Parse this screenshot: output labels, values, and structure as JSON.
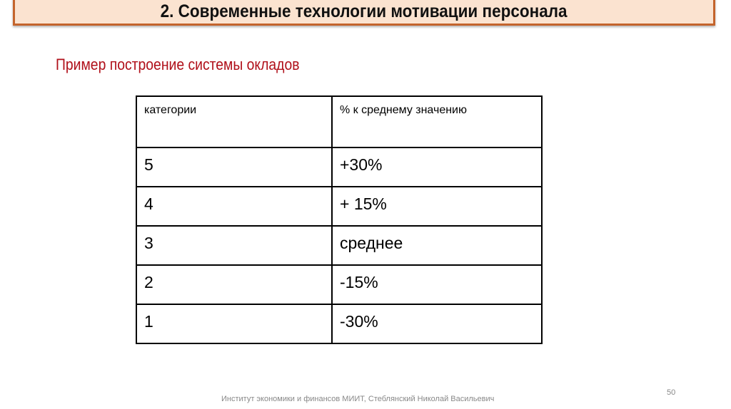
{
  "title": "2. Современные технологии мотивации персонала",
  "subtitle": "Пример построение системы окладов",
  "table": {
    "headers": [
      "категории",
      "% к среднему значению"
    ],
    "rows": [
      [
        "5",
        "+30%"
      ],
      [
        "4",
        "+ 15%"
      ],
      [
        "3",
        "среднее"
      ],
      [
        "2",
        "-15%"
      ],
      [
        "1",
        "-30%"
      ]
    ]
  },
  "footer": "Институт экономики и финансов МИИТ, Стеблянский Николай Васильевич",
  "page_number": "50",
  "colors": {
    "title_bg": "#fbe3d0",
    "title_border": "#c4642c",
    "subtitle": "#b0101a"
  }
}
